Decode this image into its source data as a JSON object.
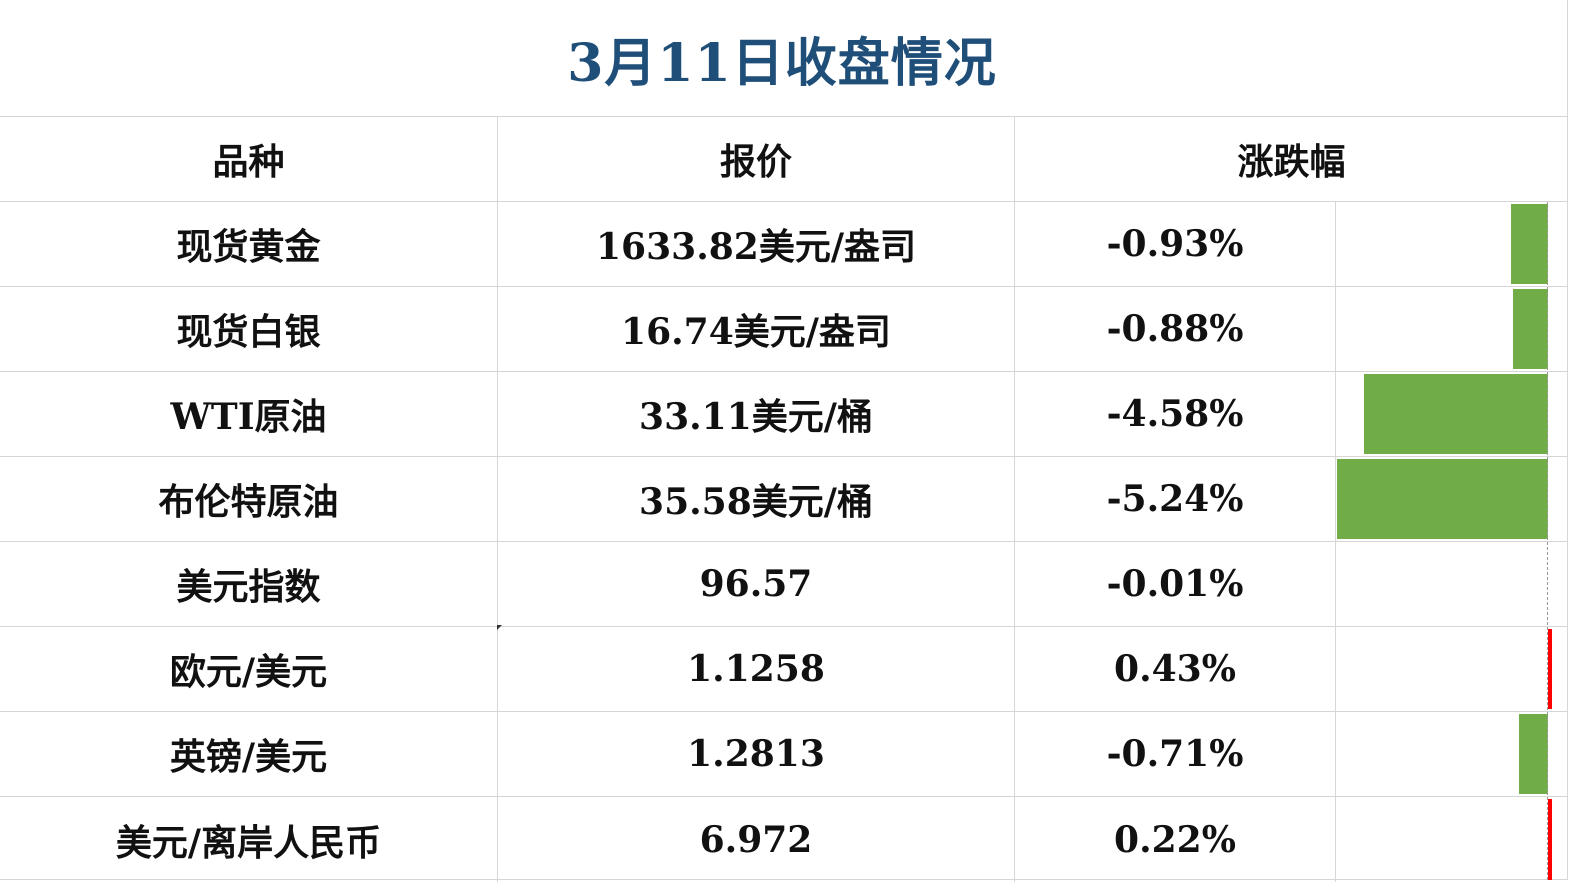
{
  "title": "3月11日收盘情况",
  "headers": {
    "name": "品种",
    "price": "报价",
    "change": "涨跌幅"
  },
  "rows": [
    {
      "name": "现货黄金",
      "price": "1633.82美元/盎司",
      "change": "-0.93%",
      "change_value": -0.93
    },
    {
      "name": "现货白银",
      "price": "16.74美元/盎司",
      "change": "-0.88%",
      "change_value": -0.88
    },
    {
      "name": "WTI原油",
      "price": "33.11美元/桶",
      "change": "-4.58%",
      "change_value": -4.58
    },
    {
      "name": "布伦特原油",
      "price": "35.58美元/桶",
      "change": "-5.24%",
      "change_value": -5.24
    },
    {
      "name": "美元指数",
      "price": "96.57",
      "change": "-0.01%",
      "change_value": -0.01
    },
    {
      "name": "欧元/美元",
      "price": "1.1258",
      "change": "0.43%",
      "change_value": 0.43
    },
    {
      "name": "英镑/美元",
      "price": "1.2813",
      "change": "-0.71%",
      "change_value": -0.71
    },
    {
      "name": "美元/离岸人民币",
      "price": "6.972",
      "change": "0.22%",
      "change_value": 0.22
    }
  ],
  "colors": {
    "title": "#1f4e79",
    "negative_bar": "#70ad47",
    "positive_bar": "#ff0000"
  }
}
